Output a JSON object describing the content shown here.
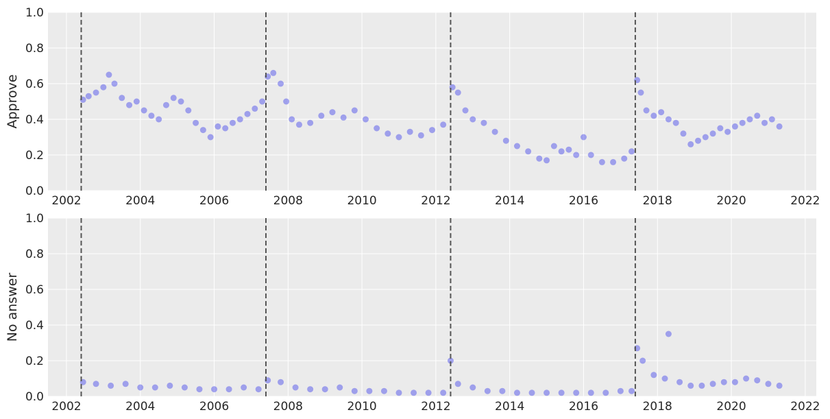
{
  "colors": {
    "background": "#ebebeb",
    "grid": "#ffffff",
    "point": "#2a2eec",
    "vline": "#555555",
    "text": "#262626"
  },
  "chart_data": [
    {
      "type": "scatter",
      "ylabel": "Approve",
      "ylim": [
        0.0,
        1.0
      ],
      "xlim": [
        2001.5,
        2022.3
      ],
      "x_ticks": [
        "2002",
        "2004",
        "2006",
        "2008",
        "2010",
        "2012",
        "2014",
        "2016",
        "2018",
        "2020",
        "2022"
      ],
      "y_ticks": [
        "0.0",
        "0.2",
        "0.4",
        "0.6",
        "0.8",
        "1.0"
      ],
      "grid": true,
      "vlines": [
        2002.4,
        2007.4,
        2012.4,
        2017.4
      ],
      "series": [
        {
          "x": [
            2002.45,
            2002.6,
            2002.8,
            2003.0,
            2003.15,
            2003.3,
            2003.5,
            2003.7,
            2003.9,
            2004.1,
            2004.3,
            2004.5,
            2004.7,
            2004.9,
            2005.1,
            2005.3,
            2005.5,
            2005.7,
            2005.9,
            2006.1,
            2006.3,
            2006.5,
            2006.7,
            2006.9,
            2007.1,
            2007.3,
            2007.45,
            2007.6,
            2007.8,
            2007.95,
            2008.1,
            2008.3,
            2008.6,
            2008.9,
            2009.2,
            2009.5,
            2009.8,
            2010.1,
            2010.4,
            2010.7,
            2011.0,
            2011.3,
            2011.6,
            2011.9,
            2012.2,
            2012.45,
            2012.6,
            2012.8,
            2013.0,
            2013.3,
            2013.6,
            2013.9,
            2014.2,
            2014.5,
            2014.8,
            2015.0,
            2015.2,
            2015.4,
            2015.6,
            2015.8,
            2016.0,
            2016.2,
            2016.5,
            2016.8,
            2017.1,
            2017.3,
            2017.45,
            2017.55,
            2017.7,
            2017.9,
            2018.1,
            2018.3,
            2018.5,
            2018.7,
            2018.9,
            2019.1,
            2019.3,
            2019.5,
            2019.7,
            2019.9,
            2020.1,
            2020.3,
            2020.5,
            2020.7,
            2020.9,
            2021.1,
            2021.3
          ],
          "y": [
            0.51,
            0.53,
            0.55,
            0.58,
            0.65,
            0.6,
            0.52,
            0.48,
            0.5,
            0.45,
            0.42,
            0.4,
            0.48,
            0.52,
            0.5,
            0.45,
            0.38,
            0.34,
            0.3,
            0.36,
            0.35,
            0.38,
            0.4,
            0.43,
            0.46,
            0.5,
            0.64,
            0.66,
            0.6,
            0.5,
            0.4,
            0.37,
            0.38,
            0.42,
            0.44,
            0.41,
            0.45,
            0.4,
            0.35,
            0.32,
            0.3,
            0.33,
            0.31,
            0.34,
            0.37,
            0.58,
            0.55,
            0.45,
            0.4,
            0.38,
            0.33,
            0.28,
            0.25,
            0.22,
            0.18,
            0.17,
            0.25,
            0.22,
            0.23,
            0.2,
            0.3,
            0.2,
            0.16,
            0.16,
            0.18,
            0.22,
            0.62,
            0.55,
            0.45,
            0.42,
            0.44,
            0.4,
            0.38,
            0.32,
            0.26,
            0.28,
            0.3,
            0.32,
            0.35,
            0.33,
            0.36,
            0.38,
            0.4,
            0.42,
            0.38,
            0.4,
            0.36
          ]
        }
      ]
    },
    {
      "type": "scatter",
      "ylabel": "No answer",
      "ylim": [
        0.0,
        1.0
      ],
      "xlim": [
        2001.5,
        2022.3
      ],
      "x_ticks": [
        "2002",
        "2004",
        "2006",
        "2008",
        "2010",
        "2012",
        "2014",
        "2016",
        "2018",
        "2020",
        "2022"
      ],
      "y_ticks": [
        "0.0",
        "0.2",
        "0.4",
        "0.6",
        "0.8",
        "1.0"
      ],
      "grid": true,
      "vlines": [
        2002.4,
        2007.4,
        2012.4,
        2017.4
      ],
      "series": [
        {
          "x": [
            2002.45,
            2002.8,
            2003.2,
            2003.6,
            2004.0,
            2004.4,
            2004.8,
            2005.2,
            2005.6,
            2006.0,
            2006.4,
            2006.8,
            2007.2,
            2007.45,
            2007.8,
            2008.2,
            2008.6,
            2009.0,
            2009.4,
            2009.8,
            2010.2,
            2010.6,
            2011.0,
            2011.4,
            2011.8,
            2012.2,
            2012.4,
            2012.6,
            2013.0,
            2013.4,
            2013.8,
            2014.2,
            2014.6,
            2015.0,
            2015.4,
            2015.8,
            2016.2,
            2016.6,
            2017.0,
            2017.3,
            2017.45,
            2017.6,
            2017.9,
            2018.2,
            2018.3,
            2018.6,
            2018.9,
            2019.2,
            2019.5,
            2019.8,
            2020.1,
            2020.4,
            2020.7,
            2021.0,
            2021.3
          ],
          "y": [
            0.08,
            0.07,
            0.06,
            0.07,
            0.05,
            0.05,
            0.06,
            0.05,
            0.04,
            0.04,
            0.04,
            0.05,
            0.04,
            0.09,
            0.08,
            0.05,
            0.04,
            0.04,
            0.05,
            0.03,
            0.03,
            0.03,
            0.02,
            0.02,
            0.02,
            0.02,
            0.2,
            0.07,
            0.05,
            0.03,
            0.03,
            0.02,
            0.02,
            0.02,
            0.02,
            0.02,
            0.02,
            0.02,
            0.03,
            0.03,
            0.27,
            0.2,
            0.12,
            0.1,
            0.35,
            0.08,
            0.06,
            0.06,
            0.07,
            0.08,
            0.08,
            0.1,
            0.09,
            0.07,
            0.06
          ]
        }
      ]
    }
  ]
}
